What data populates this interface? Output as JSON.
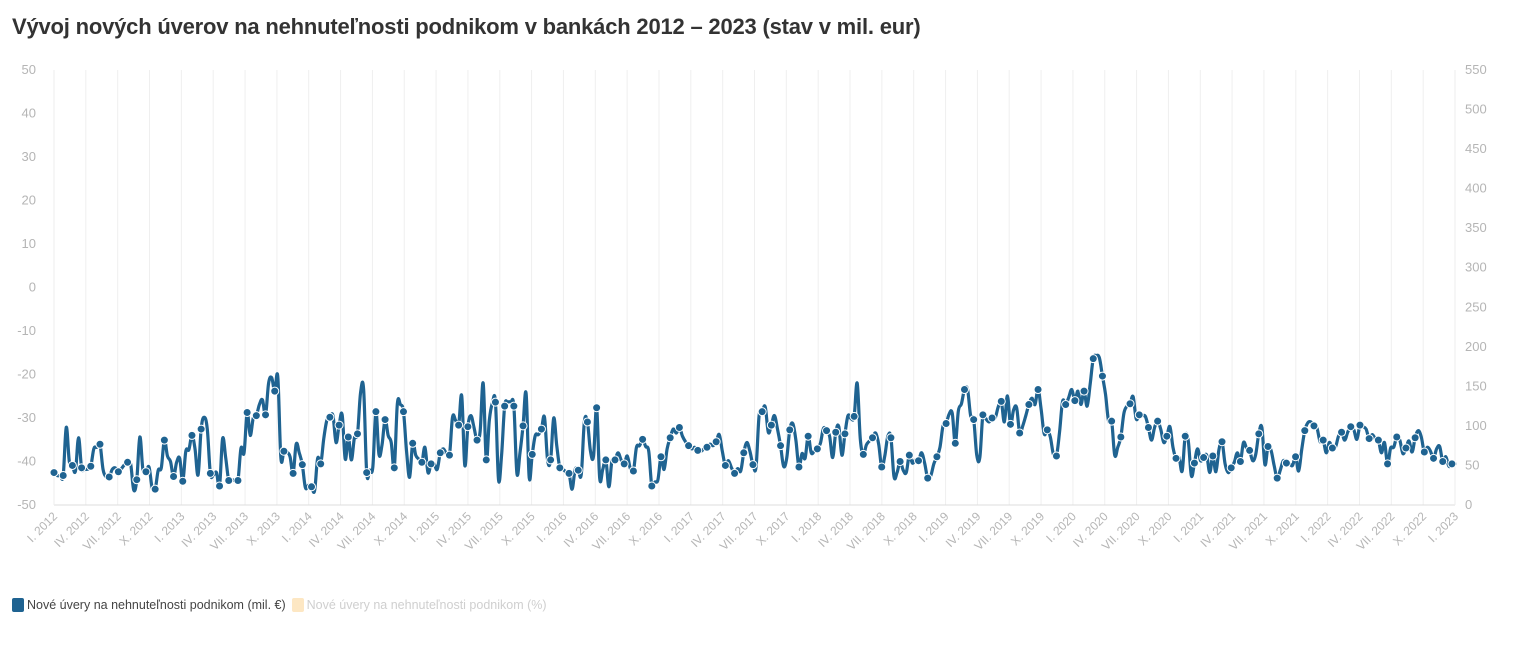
{
  "chart_data": {
    "type": "line",
    "title": "Vývoj nových úverov na nehnuteľnosti podnikom v bankách 2012 – 2023 (stav v mil. eur)",
    "left_axis": {
      "min": -50,
      "max": 50,
      "ticks": [
        "50",
        "40",
        "30",
        "20",
        "10",
        "0",
        "-10",
        "-20",
        "-30",
        "-40",
        "-50"
      ]
    },
    "right_axis": {
      "min": 0,
      "max": 550,
      "ticks": [
        "550",
        "500",
        "450",
        "400",
        "350",
        "300",
        "250",
        "200",
        "150",
        "100",
        "50",
        "0"
      ]
    },
    "x_tick_labels": [
      "I. 2012",
      "IV. 2012",
      "VII. 2012",
      "X. 2012",
      "I. 2013",
      "IV. 2013",
      "VII. 2013",
      "X. 2013",
      "I. 2014",
      "IV. 2014",
      "VII. 2014",
      "X. 2014",
      "I. 2015",
      "IV. 2015",
      "VII. 2015",
      "X. 2015",
      "I. 2016",
      "IV. 2016",
      "VII. 2016",
      "X. 2016",
      "I. 2017",
      "IV. 2017",
      "VII. 2017",
      "X. 2017",
      "I. 2018",
      "IV. 2018",
      "VII. 2018",
      "X. 2018",
      "I. 2019",
      "IV. 2019",
      "VII. 2019",
      "X. 2019",
      "I. 2020",
      "IV. 2020",
      "VII. 2020",
      "X. 2020",
      "I. 2021",
      "IV. 2021",
      "VII. 2021",
      "X. 2021",
      "I. 2022",
      "IV. 2022",
      "VII. 2022",
      "X. 2022",
      "I. 2023"
    ],
    "series": [
      {
        "name": "Nové úvery na nehnuteľnosti podnikom (mil. €)",
        "color": "#1f6391",
        "axis": "right",
        "values": [
          41,
          37.27,
          37.27,
          37.27,
          98.23,
          55,
          50,
          43,
          85,
          47,
          45.35,
          45.35,
          49,
          71.2,
          73,
          76.78,
          45,
          35.46,
          35.46,
          45,
          47,
          42,
          46,
          51,
          54,
          52,
          19.12,
          32,
          86,
          45,
          42,
          48,
          22,
          20,
          44,
          47,
          82,
          62,
          55,
          36,
          54,
          59,
          30,
          68,
          70,
          88,
          71,
          38,
          96,
          111,
          96,
          40,
          38,
          41,
          24,
          84,
          60,
          31,
          31,
          32,
          31,
          72,
          66,
          117,
          88,
          110,
          113,
          127,
          133,
          114,
          154,
          161,
          144,
          162,
          60,
          68,
          67,
          61,
          40,
          77,
          66,
          51,
          22,
          25,
          23,
          18,
          59,
          52,
          84,
          107,
          111,
          113,
          79,
          101,
          114,
          58,
          86,
          57,
          85,
          90,
          142,
          146,
          41,
          44,
          48,
          118,
          64,
          76,
          108,
          88,
          79,
          47,
          128,
          127,
          118,
          68,
          35,
          78,
          63,
          58,
          54,
          73,
          41,
          52,
          52,
          45,
          66,
          71,
          65,
          63,
          111,
          107,
          101,
          138,
          50,
          99,
          113,
          98,
          82,
          93,
          154,
          57,
          107,
          129,
          130,
          32,
          63,
          125,
          130,
          130,
          125,
          40,
          66,
          100,
          141,
          35,
          64,
          88,
          89,
          96,
          111,
          57,
          57,
          110,
          75,
          47,
          45,
          42,
          40,
          20,
          45,
          44,
          39,
          105,
          105,
          68,
          62,
          123,
          34,
          45,
          57,
          23,
          56,
          57,
          66,
          57,
          52,
          62,
          46,
          43,
          73,
          75,
          83,
          74,
          68,
          24,
          29,
          32,
          61,
          45,
          71,
          85,
          96,
          91,
          98,
          87,
          80,
          75,
          71,
          73,
          69,
          68,
          71,
          73,
          77,
          75,
          80,
          89,
          68,
          50,
          56,
          47,
          40,
          46,
          43,
          66,
          79,
          68,
          51,
          48,
          113,
          118,
          124,
          92,
          101,
          113,
          96,
          75,
          49,
          59,
          95,
          103,
          82,
          48,
          65,
          59,
          87,
          66,
          68,
          71,
          78,
          97,
          94,
          87,
          60,
          92,
          99,
          63,
          90,
          113,
          109,
          112,
          154,
          84,
          64,
          76,
          81,
          85,
          91,
          77,
          48,
          62,
          87,
          85,
          36,
          41,
          55,
          44,
          41,
          63,
          53,
          57,
          56,
          66,
          53,
          34,
          37,
          52,
          61,
          73,
          100,
          103,
          115,
          116,
          78,
          119,
          128,
          146,
          146,
          113,
          108,
          63,
          60,
          114,
          109,
          105,
          110,
          110,
          124,
          131,
          105,
          138,
          102,
          120,
          123,
          91,
          100,
          113,
          127,
          135,
          127,
          146,
          121,
          90,
          95,
          86,
          64,
          62,
          92,
          131,
          127,
          136,
          146,
          132,
          144,
          127,
          144,
          125,
          153,
          185,
          189,
          186,
          163,
          140,
          106,
          106,
          63,
          73,
          86,
          116,
          125,
          128,
          137,
          109,
          114,
          113,
          112,
          98,
          82,
          98,
          106,
          96,
          79,
          87,
          99,
          73,
          59,
          60,
          43,
          87,
          81,
          37,
          53,
          71,
          56,
          60,
          63,
          41,
          62,
          42,
          70,
          80,
          52,
          41,
          47,
          54,
          66,
          55,
          79,
          72,
          69,
          56,
          64,
          90,
          98,
          51,
          74,
          69,
          50,
          34,
          44,
          56,
          53,
          52,
          50,
          61,
          43,
          70,
          94,
          104,
          105,
          100,
          97,
          80,
          82,
          66,
          79,
          72,
          73,
          87,
          92,
          82,
          92,
          99,
          95,
          83,
          101,
          99,
          96,
          84,
          89,
          84,
          82,
          66,
          79,
          52,
          72,
          73,
          86,
          82,
          65,
          72,
          81,
          67,
          85,
          94,
          86,
          67,
          73,
          68,
          59,
          71,
          74,
          55,
          61,
          49,
          52,
          52
        ]
      },
      {
        "name": "Nové úvery na nehnuteľnosti podnikom (%)",
        "color": "#fde7c3",
        "axis": "left",
        "values": []
      }
    ]
  },
  "legend": [
    {
      "label": "Nové úvery na nehnuteľnosti podnikom (mil. €)",
      "color": "#1f6391"
    },
    {
      "label": "Nové úvery na nehnuteľnosti podnikom (%)",
      "color": "#fde7c3"
    }
  ]
}
